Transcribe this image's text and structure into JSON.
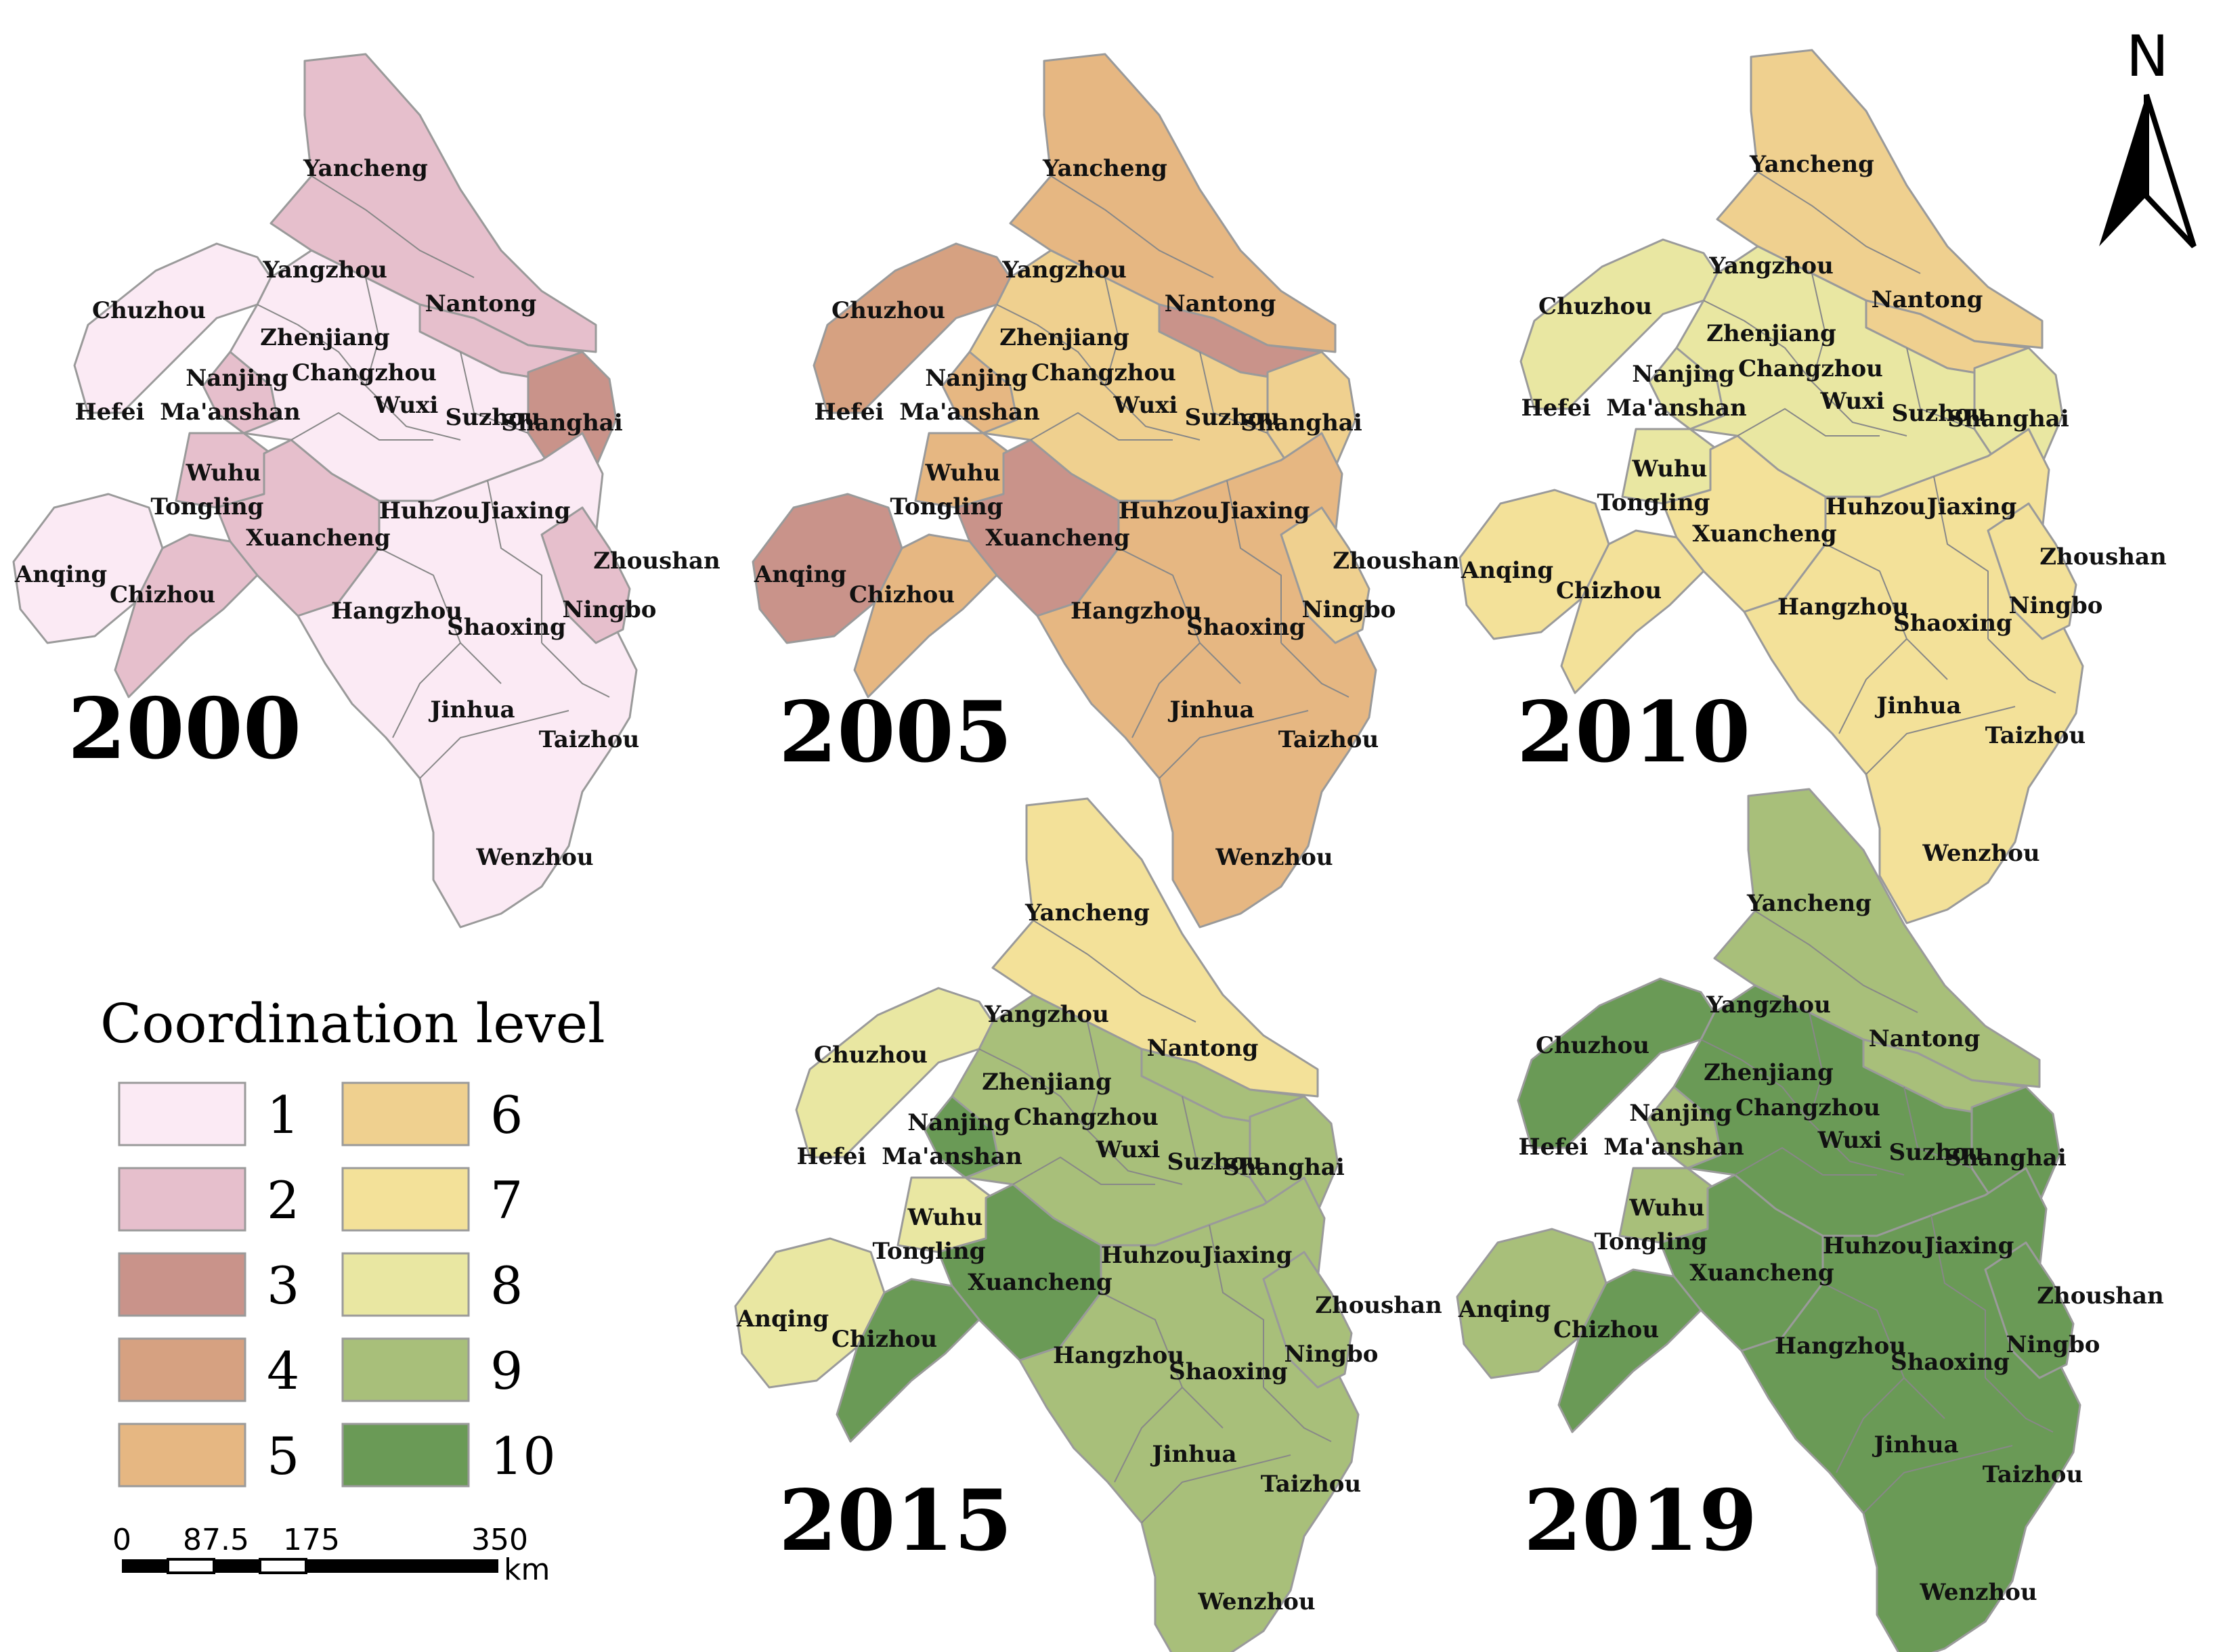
{
  "level_colors": {
    "1": "#fbeaf4",
    "2": "#e6bfcc",
    "3": "#c9938a",
    "4": "#d6a181",
    "5": "#e6b782",
    "6": "#efd08f",
    "7": "#f3e199",
    "8": "#e9e7a2",
    "9": "#a8bf7a",
    "10": "#6a9a56"
  },
  "panels": [
    {
      "year": "2000",
      "levels": {
        "north": 2,
        "nantong": 2,
        "chuzhou": 1,
        "mid": 1,
        "maanshan": 2,
        "wuhu": 2,
        "xuancheng": 2,
        "anqing": 1,
        "chizhou": 2,
        "shanghai": 3,
        "southeast": 1,
        "ningbo": 2
      }
    },
    {
      "year": "2005",
      "levels": {
        "north": 5,
        "nantong": 3,
        "chuzhou": 4,
        "mid": 6,
        "maanshan": 5,
        "wuhu": 5,
        "xuancheng": 3,
        "anqing": 3,
        "chizhou": 5,
        "shanghai": 6,
        "southeast": 5,
        "ningbo": 6
      }
    },
    {
      "year": "2010",
      "levels": {
        "north": 6,
        "nantong": 6,
        "chuzhou": 8,
        "mid": 8,
        "maanshan": 8,
        "wuhu": 8,
        "xuancheng": 7,
        "anqing": 7,
        "chizhou": 7,
        "shanghai": 8,
        "southeast": 7,
        "ningbo": 7
      }
    },
    {
      "year": "2015",
      "levels": {
        "north": 7,
        "nantong": 9,
        "chuzhou": 8,
        "mid": 9,
        "maanshan": 10,
        "wuhu": 8,
        "xuancheng": 10,
        "anqing": 8,
        "chizhou": 10,
        "shanghai": 9,
        "southeast": 9,
        "ningbo": 9
      }
    },
    {
      "year": "2019",
      "levels": {
        "north": 9,
        "nantong": 9,
        "chuzhou": 10,
        "mid": 10,
        "maanshan": 9,
        "wuhu": 9,
        "xuancheng": 10,
        "anqing": 9,
        "chizhou": 10,
        "shanghai": 10,
        "southeast": 10,
        "ningbo": 10
      }
    }
  ],
  "cities": [
    "Yancheng",
    "Yangzhou",
    "Nantong",
    "Chuzhou",
    "Zhenjiang",
    "Nanjing",
    "Changzhou",
    "Hefei",
    "Ma'anshan",
    "Wuxi",
    "Suzhou",
    "Shanghai",
    "Wuhu",
    "Tongling",
    "Huhzou",
    "Jiaxing",
    "Xuancheng",
    "Zhoushan",
    "Anqing",
    "Chizhou",
    "Hangzhou",
    "Shaoxing",
    "Ningbo",
    "Jinhua",
    "Taizhou",
    "Wenzhou"
  ],
  "legend": {
    "title": "Coordination level",
    "items": [
      "1",
      "2",
      "3",
      "4",
      "5",
      "6",
      "7",
      "8",
      "9",
      "10"
    ]
  },
  "scale_bar": {
    "ticks": [
      "0",
      "87.5",
      "175",
      "350"
    ],
    "unit": "km"
  },
  "north_arrow": {
    "label": "N"
  }
}
